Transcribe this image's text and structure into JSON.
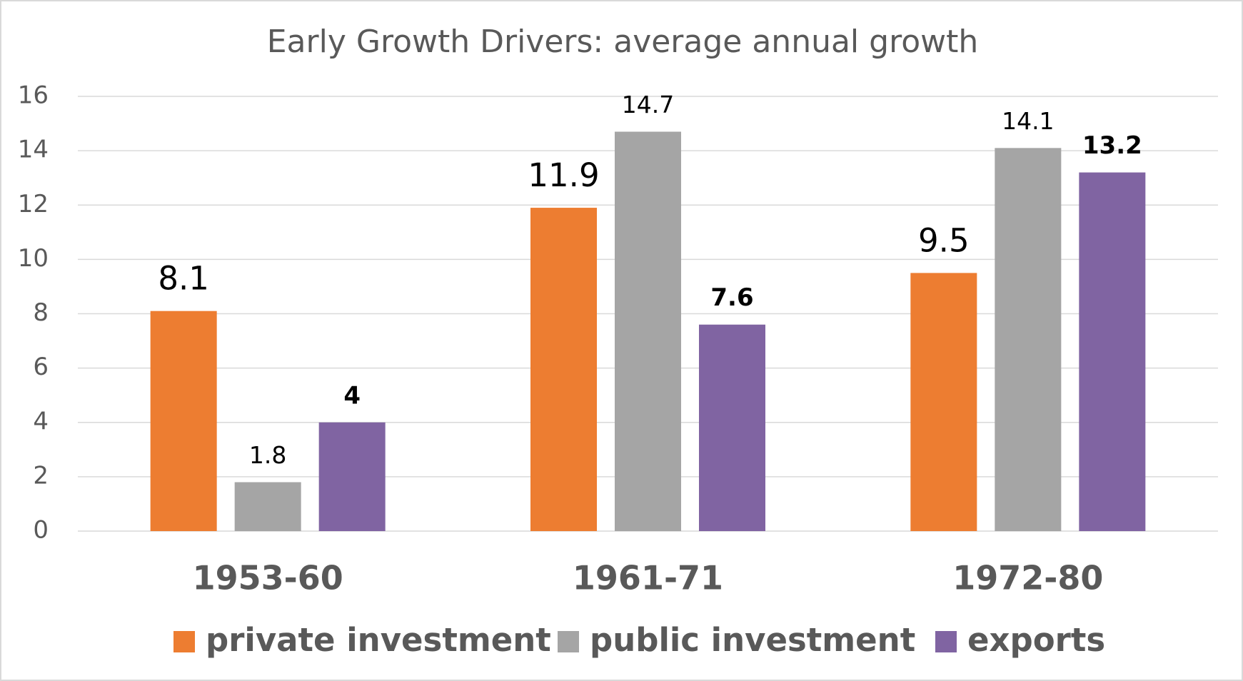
{
  "chart_data": {
    "type": "bar",
    "title": "Early Growth Drivers: average annual growth",
    "categories": [
      "1953-60",
      "1961-71",
      "1972-80"
    ],
    "series": [
      {
        "name": "private investment",
        "color": "#ed7d31",
        "values": [
          8.1,
          11.9,
          9.5
        ]
      },
      {
        "name": "public investment",
        "color": "#a5a5a5",
        "values": [
          1.8,
          14.7,
          14.1
        ]
      },
      {
        "name": "exports",
        "color": "#8064a2",
        "values": [
          4,
          7.6,
          13.2
        ]
      }
    ],
    "ylim": [
      0,
      16
    ],
    "yticks": [
      0,
      2,
      4,
      6,
      8,
      10,
      12,
      14,
      16
    ],
    "grid": true,
    "legend": "bottom"
  }
}
